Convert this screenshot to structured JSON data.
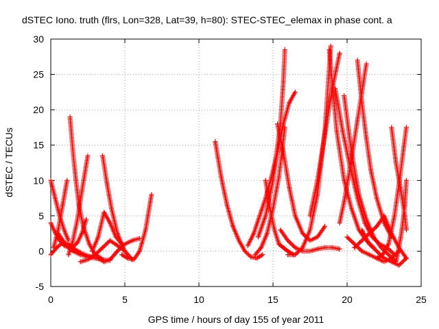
{
  "chart_data": {
    "type": "scatter",
    "title": "dSTEC Iono. truth (flrs, Lon=328, Lat=39, h=80): STEC-STEC_elemax in phase cont. a",
    "xlabel": "GPS time / hours of day 155 of year 2011",
    "ylabel": "dSTEC  / TECUs",
    "xlim": [
      0,
      25
    ],
    "ylim": [
      -5,
      30
    ],
    "xticks": [
      0,
      5,
      10,
      15,
      20,
      25
    ],
    "yticks": [
      -5,
      0,
      5,
      10,
      15,
      20,
      25,
      30
    ],
    "grid": true,
    "marker": "+",
    "color": "#ff0000",
    "series": [
      {
        "x": [
          0.0,
          0.3,
          0.6,
          0.9,
          1.2,
          1.5,
          1.8,
          2.1,
          2.4
        ],
        "y": [
          4.0,
          2.6,
          1.5,
          0.8,
          0.5,
          0.6,
          1.2,
          2.5,
          4.5
        ]
      },
      {
        "x": [
          0.0,
          0.3,
          0.6,
          0.9,
          1.2
        ],
        "y": [
          10.0,
          7.5,
          5.0,
          3.0,
          1.5
        ]
      },
      {
        "x": [
          0.0,
          0.4,
          0.8,
          1.2,
          1.6,
          2.0,
          2.4,
          2.8
        ],
        "y": [
          -0.5,
          0.5,
          1.2,
          1.0,
          0.3,
          -0.2,
          -0.6,
          -0.8
        ]
      },
      {
        "x": [
          0.2,
          0.5,
          0.8,
          1.1
        ],
        "y": [
          0.5,
          3.0,
          6.5,
          10.0
        ]
      },
      {
        "x": [
          1.3,
          1.5,
          1.7,
          1.9,
          2.2,
          2.6,
          3.0,
          3.4
        ],
        "y": [
          19.0,
          14.0,
          10.0,
          6.5,
          3.5,
          1.0,
          -0.5,
          -1.0
        ]
      },
      {
        "x": [
          1.2,
          1.5,
          1.8,
          2.1,
          2.5
        ],
        "y": [
          -0.5,
          1.5,
          4.5,
          8.5,
          13.5
        ]
      },
      {
        "x": [
          0.5,
          1.0,
          1.5,
          2.0,
          2.5,
          3.0,
          3.5,
          4.0
        ],
        "y": [
          2.5,
          1.0,
          0.0,
          -0.5,
          -0.8,
          -1.0,
          -1.2,
          -1.3
        ]
      },
      {
        "x": [
          3.5,
          3.8,
          4.1,
          4.5,
          5.0,
          5.5
        ],
        "y": [
          13.5,
          9.5,
          6.0,
          2.5,
          0.0,
          -1.2
        ]
      },
      {
        "x": [
          2.0,
          2.5,
          3.0,
          3.5,
          4.0,
          4.5,
          5.0
        ],
        "y": [
          -1.5,
          -1.2,
          -0.5,
          0.5,
          1.5,
          0.8,
          0.0
        ]
      },
      {
        "x": [
          3.2,
          3.6,
          4.0,
          4.5,
          5.0,
          5.5,
          6.0
        ],
        "y": [
          -1.0,
          -1.5,
          -1.2,
          0.0,
          1.0,
          1.5,
          1.8
        ]
      },
      {
        "x": [
          4.8,
          5.2,
          5.6,
          6.0,
          6.4,
          6.8
        ],
        "y": [
          -0.5,
          -1.0,
          -1.2,
          0.0,
          3.0,
          8.0
        ]
      },
      {
        "x": [
          2.8,
          3.2,
          3.6,
          4.0,
          4.4,
          4.8
        ],
        "y": [
          0.0,
          2.0,
          5.5,
          4.0,
          2.0,
          1.0
        ]
      },
      {
        "x": [
          11.1,
          11.5,
          11.9,
          12.3,
          12.7,
          13.1,
          13.5,
          13.9,
          14.3
        ],
        "y": [
          15.5,
          10.5,
          6.5,
          3.5,
          1.5,
          0.0,
          -0.8,
          -1.0,
          -0.5
        ]
      },
      {
        "x": [
          13.3,
          13.7,
          14.1,
          14.5,
          14.9,
          15.3,
          15.7,
          16.1,
          16.5
        ],
        "y": [
          0.8,
          2.5,
          5.0,
          7.5,
          10.5,
          14.0,
          18.0,
          21.0,
          22.5
        ]
      },
      {
        "x": [
          13.8,
          14.2,
          14.6,
          15.0,
          15.4,
          15.8
        ],
        "y": [
          -0.5,
          0.5,
          2.5,
          6.0,
          10.5,
          17.5
        ]
      },
      {
        "x": [
          14.5,
          14.8,
          15.1,
          15.4,
          15.7,
          16.0,
          16.4
        ],
        "y": [
          10.0,
          6.0,
          3.0,
          1.0,
          0.5,
          0.0,
          -0.5
        ]
      },
      {
        "x": [
          14.0,
          14.5,
          15.0,
          15.5,
          15.7,
          15.8
        ],
        "y": [
          2.0,
          5.0,
          10.0,
          18.0,
          24.0,
          28.5
        ]
      },
      {
        "x": [
          15.3,
          15.7,
          16.1,
          16.5,
          17.0,
          17.5,
          18.0,
          18.5
        ],
        "y": [
          18.0,
          14.0,
          9.0,
          5.0,
          2.5,
          1.5,
          2.0,
          3.5
        ]
      },
      {
        "x": [
          15.5,
          16.0,
          16.5,
          17.0,
          17.5,
          18.0,
          18.5,
          19.0,
          19.5
        ],
        "y": [
          3.0,
          1.5,
          0.5,
          0.0,
          0.0,
          0.3,
          0.5,
          0.5,
          0.3
        ]
      },
      {
        "x": [
          16.0,
          16.5,
          17.0,
          17.5,
          18.0,
          18.5,
          18.9
        ],
        "y": [
          -0.5,
          -0.5,
          0.5,
          3.0,
          8.0,
          17.0,
          29.0
        ]
      },
      {
        "x": [
          17.5,
          18.0,
          18.5,
          19.0,
          19.5
        ],
        "y": [
          5.0,
          10.0,
          16.5,
          23.0,
          28.0
        ]
      },
      {
        "x": [
          18.8,
          19.3,
          19.8,
          20.3,
          20.8,
          21.3,
          21.8
        ],
        "y": [
          28.5,
          17.0,
          10.0,
          6.0,
          3.0,
          1.5,
          0.5
        ]
      },
      {
        "x": [
          19.2,
          19.7,
          20.2,
          20.7,
          21.2,
          21.7,
          22.2,
          22.7,
          23.2
        ],
        "y": [
          23.0,
          17.0,
          12.0,
          7.5,
          4.0,
          2.0,
          1.0,
          0.5,
          -0.5
        ]
      },
      {
        "x": [
          19.8,
          20.3,
          20.8,
          21.3,
          21.8,
          22.3,
          22.8,
          23.3
        ],
        "y": [
          22.0,
          14.0,
          8.0,
          4.5,
          2.0,
          0.5,
          -0.5,
          -1.5
        ]
      },
      {
        "x": [
          19.5,
          19.8,
          20.1,
          20.4,
          20.7,
          21.0,
          21.3
        ],
        "y": [
          4.0,
          7.0,
          10.5,
          14.5,
          18.5,
          22.5,
          26.5
        ]
      },
      {
        "x": [
          20.7,
          21.0,
          21.3,
          21.6,
          22.0,
          22.5,
          23.0
        ],
        "y": [
          27.0,
          21.0,
          16.0,
          11.5,
          7.5,
          4.0,
          2.0
        ]
      },
      {
        "x": [
          20.5,
          21.0,
          21.5,
          22.0,
          22.5
        ],
        "y": [
          0.5,
          1.5,
          2.5,
          3.5,
          5.0
        ]
      },
      {
        "x": [
          20.0,
          20.5,
          21.0,
          21.5,
          22.0,
          22.5,
          23.0,
          23.5
        ],
        "y": [
          2.0,
          1.0,
          0.0,
          -0.5,
          -1.0,
          -1.5,
          -1.0,
          0.0
        ]
      },
      {
        "x": [
          21.0,
          21.5,
          22.0,
          22.5,
          23.0,
          23.5,
          24.0
        ],
        "y": [
          3.0,
          1.0,
          0.0,
          -1.0,
          -1.5,
          -2.0,
          -1.0
        ]
      },
      {
        "x": [
          22.0,
          22.4,
          22.8,
          23.2,
          23.6,
          24.0
        ],
        "y": [
          -1.0,
          -0.5,
          1.0,
          5.0,
          11.0,
          17.5
        ]
      },
      {
        "x": [
          23.0,
          23.3,
          23.6,
          23.9,
          24.0
        ],
        "y": [
          17.5,
          12.5,
          9.0,
          5.0,
          3.0
        ]
      },
      {
        "x": [
          23.3,
          23.5,
          23.7,
          23.9,
          24.0
        ],
        "y": [
          -1.5,
          0.5,
          3.0,
          6.5,
          10.0
        ]
      },
      {
        "x": [
          22.5,
          23.0,
          23.5,
          24.0
        ],
        "y": [
          5.0,
          2.5,
          0.5,
          -1.0
        ]
      }
    ]
  }
}
